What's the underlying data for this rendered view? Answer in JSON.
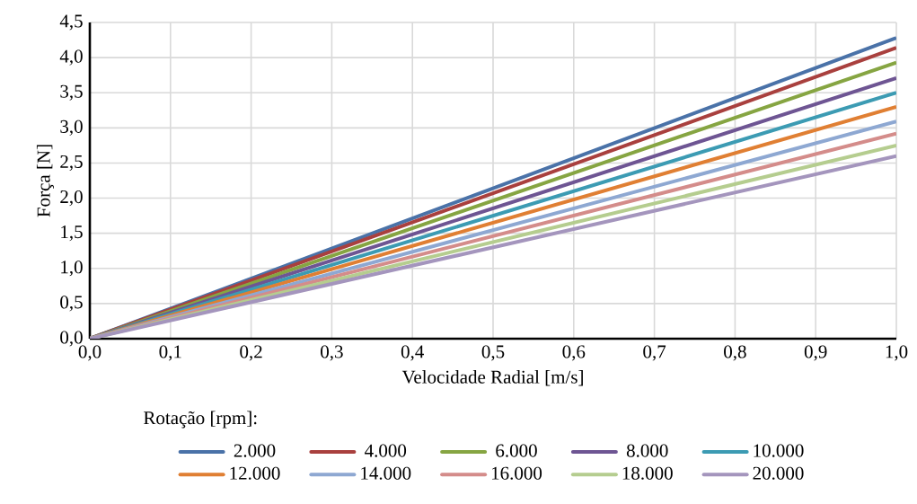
{
  "chart_data": {
    "type": "line",
    "xlabel": "Velocidade Radial [m/s]",
    "ylabel": "Força [N]",
    "legend_title": "Rotação [rpm]:",
    "x": [
      0,
      1
    ],
    "series": [
      {
        "name": "2.000",
        "color": "#4a72a8",
        "values": [
          0,
          4.28
        ]
      },
      {
        "name": "4.000",
        "color": "#a9403e",
        "values": [
          0,
          4.14
        ]
      },
      {
        "name": "6.000",
        "color": "#86a542",
        "values": [
          0,
          3.93
        ]
      },
      {
        "name": "8.000",
        "color": "#6e5593",
        "values": [
          0,
          3.71
        ]
      },
      {
        "name": "10.000",
        "color": "#3c9bb3",
        "values": [
          0,
          3.5
        ]
      },
      {
        "name": "12.000",
        "color": "#e07f33",
        "values": [
          0,
          3.3
        ]
      },
      {
        "name": "14.000",
        "color": "#8ea8d2",
        "values": [
          0,
          3.09
        ]
      },
      {
        "name": "16.000",
        "color": "#d48c8a",
        "values": [
          0,
          2.92
        ]
      },
      {
        "name": "18.000",
        "color": "#b5cd8f",
        "values": [
          0,
          2.75
        ]
      },
      {
        "name": "20.000",
        "color": "#a495bd",
        "values": [
          0,
          2.6
        ]
      }
    ],
    "xlim": [
      0,
      1
    ],
    "ylim": [
      0,
      4.5
    ],
    "xticks": [
      {
        "value": 0,
        "label": "0,0"
      },
      {
        "value": 0.1,
        "label": "0,1"
      },
      {
        "value": 0.2,
        "label": "0,2"
      },
      {
        "value": 0.3,
        "label": "0,3"
      },
      {
        "value": 0.4,
        "label": "0,4"
      },
      {
        "value": 0.5,
        "label": "0,5"
      },
      {
        "value": 0.6,
        "label": "0,6"
      },
      {
        "value": 0.7,
        "label": "0,7"
      },
      {
        "value": 0.8,
        "label": "0,8"
      },
      {
        "value": 0.9,
        "label": "0,9"
      },
      {
        "value": 1,
        "label": "1,0"
      }
    ],
    "yticks": [
      {
        "value": 0,
        "label": "0,0"
      },
      {
        "value": 0.5,
        "label": "0,5"
      },
      {
        "value": 1,
        "label": "1,0"
      },
      {
        "value": 1.5,
        "label": "1,5"
      },
      {
        "value": 2,
        "label": "2,0"
      },
      {
        "value": 2.5,
        "label": "2,5"
      },
      {
        "value": 3,
        "label": "3,0"
      },
      {
        "value": 3.5,
        "label": "3,5"
      },
      {
        "value": 4,
        "label": "4,0"
      },
      {
        "value": 4.5,
        "label": "4,5"
      }
    ],
    "grid": true,
    "legend": "bottom",
    "marker": "none",
    "line_style": "solid"
  }
}
